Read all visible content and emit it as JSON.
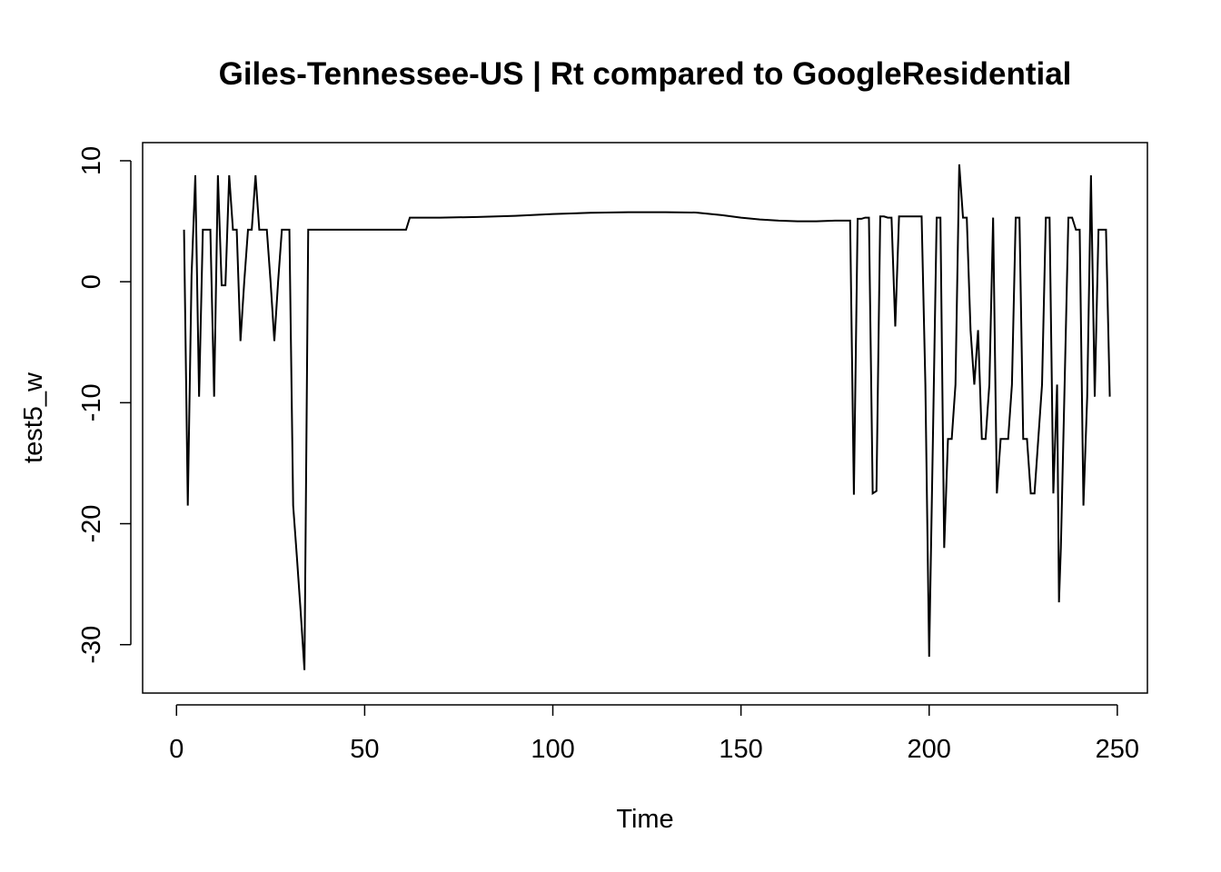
{
  "chart_data": {
    "type": "line",
    "title": "Giles-Tennessee-US | Rt compared to GoogleResidential",
    "xlabel": "Time",
    "ylabel": "test5_w",
    "xlim": [
      -9,
      258
    ],
    "ylim": [
      -34,
      11.5
    ],
    "x_ticks": [
      0,
      50,
      100,
      150,
      200,
      250
    ],
    "y_ticks": [
      -30,
      -20,
      -10,
      0,
      10
    ],
    "grid": false,
    "legend": "none",
    "series": [
      {
        "color": "#000000",
        "points": [
          [
            2,
            4.3
          ],
          [
            3,
            -18.5
          ],
          [
            4,
            0.5
          ],
          [
            5,
            8.8
          ],
          [
            6,
            -9.5
          ],
          [
            7,
            4.3
          ],
          [
            8,
            4.3
          ],
          [
            9,
            4.3
          ],
          [
            10,
            -9.5
          ],
          [
            11,
            8.8
          ],
          [
            12,
            -0.3
          ],
          [
            13,
            -0.3
          ],
          [
            14,
            8.8
          ],
          [
            15,
            4.3
          ],
          [
            16,
            4.3
          ],
          [
            17,
            -4.9
          ],
          [
            18,
            0
          ],
          [
            19,
            4.3
          ],
          [
            20,
            4.3
          ],
          [
            21,
            8.8
          ],
          [
            22,
            4.3
          ],
          [
            23,
            4.3
          ],
          [
            24,
            4.3
          ],
          [
            25,
            0
          ],
          [
            26,
            -4.9
          ],
          [
            27,
            0
          ],
          [
            28,
            4.3
          ],
          [
            29,
            4.3
          ],
          [
            30,
            4.3
          ],
          [
            31,
            -18.5
          ],
          [
            32,
            -22.8
          ],
          [
            33,
            -27.3
          ],
          [
            34,
            -32.1
          ],
          [
            35,
            4.3
          ],
          [
            40,
            4.3
          ],
          [
            50,
            4.3
          ],
          [
            61,
            4.3
          ],
          [
            62,
            5.3
          ],
          [
            70,
            5.3
          ],
          [
            80,
            5.35
          ],
          [
            90,
            5.45
          ],
          [
            100,
            5.6
          ],
          [
            110,
            5.7
          ],
          [
            120,
            5.75
          ],
          [
            130,
            5.75
          ],
          [
            138,
            5.72
          ],
          [
            145,
            5.5
          ],
          [
            150,
            5.3
          ],
          [
            155,
            5.15
          ],
          [
            160,
            5.05
          ],
          [
            165,
            5.0
          ],
          [
            170,
            5.0
          ],
          [
            175,
            5.05
          ],
          [
            179,
            5.05
          ],
          [
            180,
            -17.6
          ],
          [
            181,
            5.2
          ],
          [
            182,
            5.2
          ],
          [
            183,
            5.3
          ],
          [
            184,
            5.3
          ],
          [
            185,
            -17.5
          ],
          [
            186,
            -17.3
          ],
          [
            187,
            5.4
          ],
          [
            188,
            5.4
          ],
          [
            189,
            5.3
          ],
          [
            190,
            5.3
          ],
          [
            191,
            -3.7
          ],
          [
            192,
            5.4
          ],
          [
            193,
            5.4
          ],
          [
            194,
            5.4
          ],
          [
            195,
            5.4
          ],
          [
            196,
            5.4
          ],
          [
            197,
            5.4
          ],
          [
            198,
            5.4
          ],
          [
            199,
            -8.5
          ],
          [
            200,
            -31.0
          ],
          [
            201,
            -13.0
          ],
          [
            202,
            5.3
          ],
          [
            203,
            5.3
          ],
          [
            204,
            -22.0
          ],
          [
            205,
            -13.0
          ],
          [
            206,
            -13.0
          ],
          [
            207,
            -8.5
          ],
          [
            208,
            9.7
          ],
          [
            209,
            5.3
          ],
          [
            210,
            5.3
          ],
          [
            211,
            -4.0
          ],
          [
            212,
            -8.5
          ],
          [
            213,
            -4.0
          ],
          [
            214,
            -13.0
          ],
          [
            215,
            -13.0
          ],
          [
            216,
            -8.5
          ],
          [
            217,
            5.3
          ],
          [
            218,
            -17.5
          ],
          [
            219,
            -13.0
          ],
          [
            220,
            -13.0
          ],
          [
            221,
            -13.0
          ],
          [
            222,
            -8.5
          ],
          [
            223,
            5.3
          ],
          [
            224,
            5.3
          ],
          [
            225,
            -13.0
          ],
          [
            226,
            -13.0
          ],
          [
            227,
            -17.5
          ],
          [
            228,
            -17.5
          ],
          [
            229,
            -13.0
          ],
          [
            230,
            -8.5
          ],
          [
            231,
            5.3
          ],
          [
            232,
            5.3
          ],
          [
            233,
            -17.5
          ],
          [
            234,
            -8.5
          ],
          [
            234.5,
            -26.5
          ],
          [
            235,
            -22.0
          ],
          [
            236,
            -8.5
          ],
          [
            237,
            5.3
          ],
          [
            238,
            5.3
          ],
          [
            239,
            4.3
          ],
          [
            240,
            4.3
          ],
          [
            241,
            -18.5
          ],
          [
            242,
            -9.5
          ],
          [
            243,
            8.8
          ],
          [
            244,
            -9.5
          ],
          [
            245,
            4.3
          ],
          [
            246,
            4.3
          ],
          [
            247,
            4.3
          ],
          [
            248,
            -9.5
          ]
        ]
      }
    ]
  }
}
